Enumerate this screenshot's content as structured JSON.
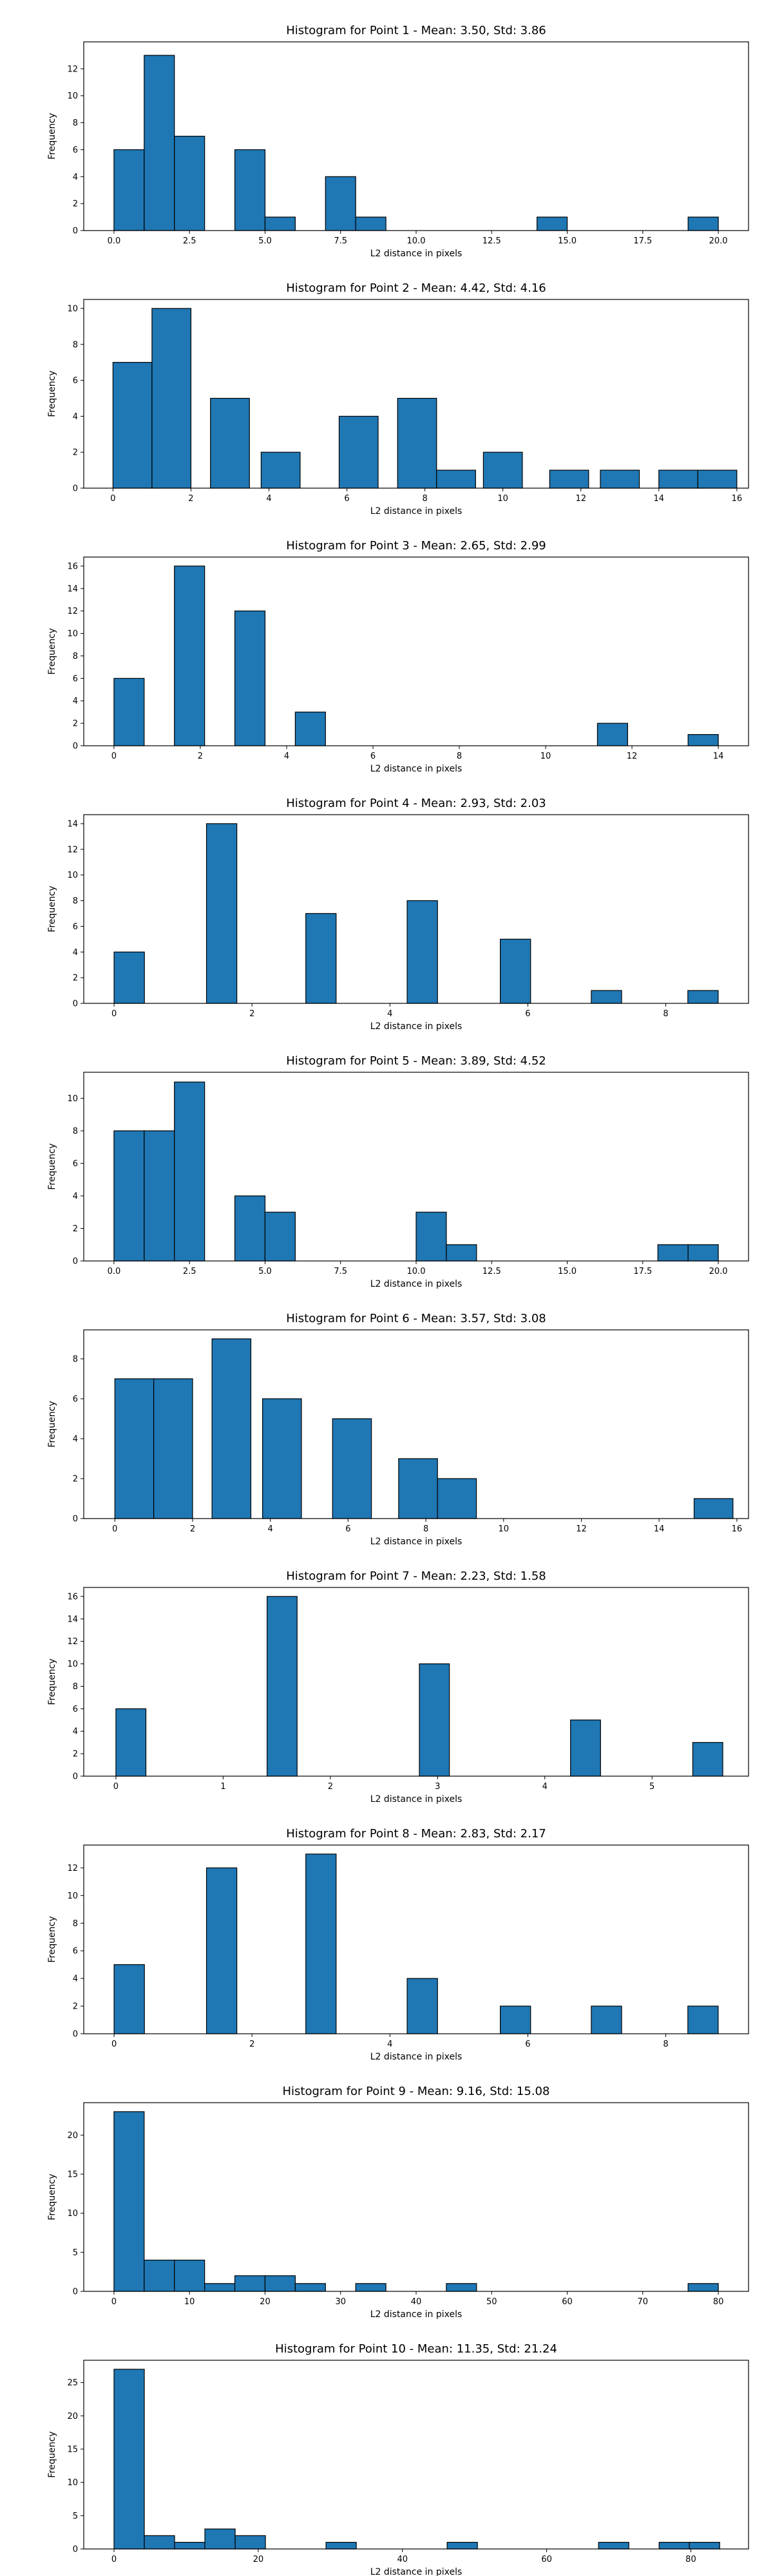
{
  "chart_data": [
    {
      "type": "bar",
      "title": "Histogram for Point 1 - Mean: 3.50, Std: 3.86",
      "xlabel": "L2 distance in pixels",
      "ylabel": "Frequency",
      "color": "#1f77b4",
      "xlim": [
        -1.0,
        21.0
      ],
      "ylim": [
        0,
        14
      ],
      "xticks": [
        0,
        2.5,
        5,
        7.5,
        10,
        12.5,
        15,
        17.5,
        20
      ],
      "xtick_labels": [
        "0.0",
        "2.5",
        "5.0",
        "7.5",
        "10.0",
        "12.5",
        "15.0",
        "17.5",
        "20.0"
      ],
      "yticks": [
        0,
        2,
        4,
        6,
        8,
        10,
        12
      ],
      "bins": [
        [
          0,
          1
        ],
        [
          1,
          2
        ],
        [
          2,
          3
        ],
        [
          4,
          5
        ],
        [
          5,
          6
        ],
        [
          7,
          8
        ],
        [
          8,
          9
        ],
        [
          14,
          15
        ],
        [
          19,
          20
        ]
      ],
      "values": [
        6,
        13,
        7,
        6,
        1,
        4,
        1,
        1,
        1
      ]
    },
    {
      "type": "bar",
      "title": "Histogram for Point 2 - Mean: 4.42, Std: 4.16",
      "xlabel": "L2 distance in pixels",
      "ylabel": "Frequency",
      "color": "#1f77b4",
      "xlim": [
        -0.75,
        16.3
      ],
      "ylim": [
        0,
        10.5
      ],
      "xticks": [
        0,
        2,
        4,
        6,
        8,
        10,
        12,
        14,
        16
      ],
      "xtick_labels": [
        "0",
        "2",
        "4",
        "6",
        "8",
        "10",
        "12",
        "14",
        "16"
      ],
      "yticks": [
        0,
        2,
        4,
        6,
        8,
        10
      ],
      "bins": [
        [
          0,
          1
        ],
        [
          1,
          2
        ],
        [
          2.5,
          3.5
        ],
        [
          3.8,
          4.8
        ],
        [
          5.8,
          6.8
        ],
        [
          7.3,
          8.3
        ],
        [
          8.3,
          9.3
        ],
        [
          9.5,
          10.5
        ],
        [
          11.2,
          12.2
        ],
        [
          12.5,
          13.5
        ],
        [
          14,
          15
        ],
        [
          15,
          16
        ]
      ],
      "values": [
        7,
        10,
        5,
        2,
        4,
        5,
        1,
        2,
        1,
        1,
        1,
        1
      ]
    },
    {
      "type": "bar",
      "title": "Histogram for Point 3 - Mean: 2.65, Std: 2.99",
      "xlabel": "L2 distance in pixels",
      "ylabel": "Frequency",
      "color": "#1f77b4",
      "xlim": [
        -0.7,
        14.7
      ],
      "ylim": [
        0,
        16.8
      ],
      "xticks": [
        0,
        2,
        4,
        6,
        8,
        10,
        12,
        14
      ],
      "xtick_labels": [
        "0",
        "2",
        "4",
        "6",
        "8",
        "10",
        "12",
        "14"
      ],
      "yticks": [
        0,
        2,
        4,
        6,
        8,
        10,
        12,
        14,
        16
      ],
      "bins": [
        [
          0,
          0.7
        ],
        [
          1.4,
          2.1
        ],
        [
          2.8,
          3.5
        ],
        [
          4.2,
          4.9
        ],
        [
          11.2,
          11.9
        ],
        [
          13.3,
          14.0
        ]
      ],
      "values": [
        6,
        16,
        12,
        3,
        2,
        1
      ]
    },
    {
      "type": "bar",
      "title": "Histogram for Point 4 - Mean: 2.93, Std: 2.03",
      "xlabel": "L2 distance in pixels",
      "ylabel": "Frequency",
      "color": "#1f77b4",
      "xlim": [
        -0.44,
        9.2
      ],
      "ylim": [
        0,
        14.7
      ],
      "xticks": [
        0,
        2,
        4,
        6,
        8
      ],
      "xtick_labels": [
        "0",
        "2",
        "4",
        "6",
        "8"
      ],
      "yticks": [
        0,
        2,
        4,
        6,
        8,
        10,
        12,
        14
      ],
      "bins": [
        [
          0,
          0.44
        ],
        [
          1.34,
          1.78
        ],
        [
          2.78,
          3.22
        ],
        [
          4.25,
          4.69
        ],
        [
          5.6,
          6.04
        ],
        [
          6.92,
          7.36
        ],
        [
          8.32,
          8.76
        ]
      ],
      "values": [
        4,
        14,
        7,
        8,
        5,
        1,
        1
      ]
    },
    {
      "type": "bar",
      "title": "Histogram for Point 5 - Mean: 3.89, Std: 4.52",
      "xlabel": "L2 distance in pixels",
      "ylabel": "Frequency",
      "color": "#1f77b4",
      "xlim": [
        -1.0,
        21.0
      ],
      "ylim": [
        0,
        11.6
      ],
      "xticks": [
        0,
        2.5,
        5,
        7.5,
        10,
        12.5,
        15,
        17.5,
        20
      ],
      "xtick_labels": [
        "0.0",
        "2.5",
        "5.0",
        "7.5",
        "10.0",
        "12.5",
        "15.0",
        "17.5",
        "20.0"
      ],
      "yticks": [
        0,
        2,
        4,
        6,
        8,
        10
      ],
      "bins": [
        [
          0,
          1
        ],
        [
          1,
          2
        ],
        [
          2,
          3
        ],
        [
          4,
          5
        ],
        [
          5,
          6
        ],
        [
          10,
          11
        ],
        [
          11,
          12
        ],
        [
          18,
          19
        ],
        [
          19,
          20
        ]
      ],
      "values": [
        8,
        8,
        11,
        4,
        3,
        3,
        1,
        1,
        1
      ]
    },
    {
      "type": "bar",
      "title": "Histogram for Point 6 - Mean: 3.57, Std: 3.08",
      "xlabel": "L2 distance in pixels",
      "ylabel": "Frequency",
      "color": "#1f77b4",
      "xlim": [
        -0.8,
        16.3
      ],
      "ylim": [
        0,
        9.45
      ],
      "xticks": [
        0,
        2,
        4,
        6,
        8,
        10,
        12,
        14,
        16
      ],
      "xtick_labels": [
        "0",
        "2",
        "4",
        "6",
        "8",
        "10",
        "12",
        "14",
        "16"
      ],
      "yticks": [
        0,
        2,
        4,
        6,
        8
      ],
      "bins": [
        [
          0,
          1
        ],
        [
          1,
          2
        ],
        [
          2.5,
          3.5
        ],
        [
          3.8,
          4.8
        ],
        [
          5.6,
          6.6
        ],
        [
          7.3,
          8.3
        ],
        [
          8.3,
          9.3
        ],
        [
          14.9,
          15.9
        ]
      ],
      "values": [
        7,
        7,
        9,
        6,
        5,
        3,
        2,
        1
      ]
    },
    {
      "type": "bar",
      "title": "Histogram for Point 7 - Mean: 2.23, Std: 1.58",
      "xlabel": "L2 distance in pixels",
      "ylabel": "Frequency",
      "color": "#1f77b4",
      "xlim": [
        -0.3,
        5.9
      ],
      "ylim": [
        0,
        16.8
      ],
      "xticks": [
        0,
        1,
        2,
        3,
        4,
        5
      ],
      "xtick_labels": [
        "0",
        "1",
        "2",
        "3",
        "4",
        "5"
      ],
      "yticks": [
        0,
        2,
        4,
        6,
        8,
        10,
        12,
        14,
        16
      ],
      "bins": [
        [
          0,
          0.28
        ],
        [
          1.41,
          1.69
        ],
        [
          2.83,
          3.11
        ],
        [
          4.24,
          4.52
        ],
        [
          5.38,
          5.66
        ]
      ],
      "values": [
        6,
        16,
        10,
        5,
        3
      ]
    },
    {
      "type": "bar",
      "title": "Histogram for Point 8 - Mean: 2.83, Std: 2.17",
      "xlabel": "L2 distance in pixels",
      "ylabel": "Frequency",
      "color": "#1f77b4",
      "xlim": [
        -0.44,
        9.2
      ],
      "ylim": [
        0,
        13.65
      ],
      "xticks": [
        0,
        2,
        4,
        6,
        8
      ],
      "xtick_labels": [
        "0",
        "2",
        "4",
        "6",
        "8"
      ],
      "yticks": [
        0,
        2,
        4,
        6,
        8,
        10,
        12
      ],
      "bins": [
        [
          0,
          0.44
        ],
        [
          1.34,
          1.78
        ],
        [
          2.78,
          3.22
        ],
        [
          4.25,
          4.69
        ],
        [
          5.6,
          6.04
        ],
        [
          6.92,
          7.36
        ],
        [
          8.32,
          8.76
        ]
      ],
      "values": [
        5,
        12,
        13,
        4,
        2,
        2,
        2
      ]
    },
    {
      "type": "bar",
      "title": "Histogram for Point 9 - Mean: 9.16, Std: 15.08",
      "xlabel": "L2 distance in pixels",
      "ylabel": "Frequency",
      "color": "#1f77b4",
      "xlim": [
        -4.0,
        84.0
      ],
      "ylim": [
        0,
        24.15
      ],
      "xticks": [
        0,
        10,
        20,
        30,
        40,
        50,
        60,
        70,
        80
      ],
      "xtick_labels": [
        "0",
        "10",
        "20",
        "30",
        "40",
        "50",
        "60",
        "70",
        "80"
      ],
      "yticks": [
        0,
        5,
        10,
        15,
        20
      ],
      "bins": [
        [
          0,
          4
        ],
        [
          4,
          8
        ],
        [
          8,
          12
        ],
        [
          12,
          16
        ],
        [
          16,
          20
        ],
        [
          20,
          24
        ],
        [
          24,
          28
        ],
        [
          32,
          36
        ],
        [
          44,
          48
        ],
        [
          76,
          80
        ]
      ],
      "values": [
        23,
        4,
        4,
        1,
        2,
        2,
        1,
        1,
        1,
        1
      ]
    },
    {
      "type": "bar",
      "title": "Histogram for Point 10 - Mean: 11.35, Std: 21.24",
      "xlabel": "L2 distance in pixels",
      "ylabel": "Frequency",
      "color": "#1f77b4",
      "xlim": [
        -4.2,
        88.0
      ],
      "ylim": [
        0,
        28.35
      ],
      "xticks": [
        0,
        20,
        40,
        60,
        80
      ],
      "xtick_labels": [
        "0",
        "20",
        "40",
        "60",
        "80"
      ],
      "yticks": [
        0,
        5,
        10,
        15,
        20,
        25
      ],
      "bins": [
        [
          0,
          4.2
        ],
        [
          4.2,
          8.4
        ],
        [
          8.4,
          12.6
        ],
        [
          12.6,
          16.8
        ],
        [
          16.8,
          21.0
        ],
        [
          29.4,
          33.6
        ],
        [
          46.2,
          50.4
        ],
        [
          67.2,
          71.4
        ],
        [
          75.6,
          79.8
        ],
        [
          79.8,
          84.0
        ]
      ],
      "values": [
        27,
        2,
        1,
        3,
        2,
        1,
        1,
        1,
        1,
        1
      ]
    }
  ]
}
